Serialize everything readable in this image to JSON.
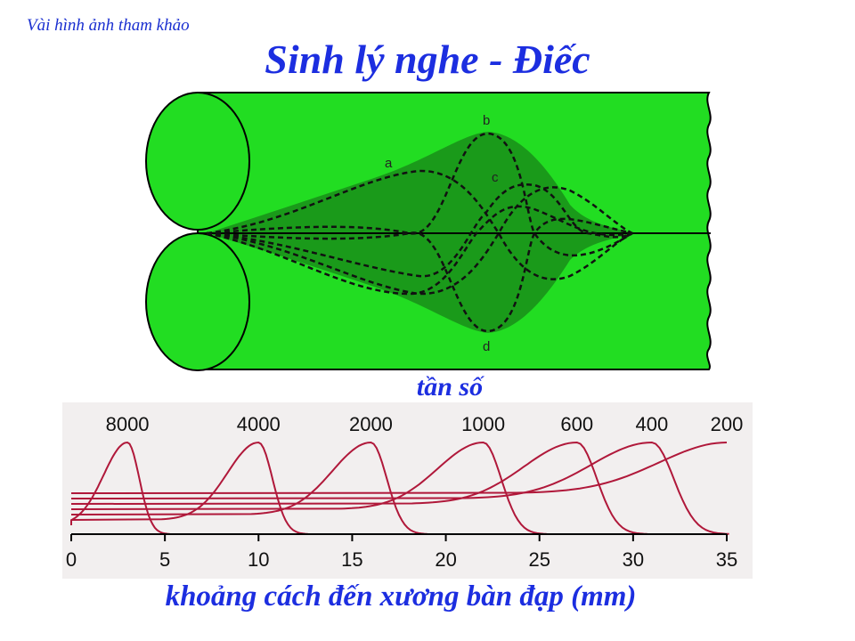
{
  "caption": "Vài hình ảnh tham khảo",
  "title": "Sinh lý nghe - Điếc",
  "wave_labels": [
    "a",
    "b",
    "c",
    "d"
  ],
  "colors": {
    "tube": "#22dd22",
    "envelope": "#1a9a1a",
    "curve": "#b0183a",
    "title": "#1c2ee0"
  },
  "frequency_title": "tần số",
  "x_axis_label": "khoảng cách đến xương bàn đạp (mm)",
  "chart_data": {
    "type": "line",
    "xlabel": "khoảng cách đến xương bàn đạp (mm)",
    "xlim": [
      0,
      35
    ],
    "x_ticks": [
      "0",
      "5",
      "10",
      "15",
      "20",
      "25",
      "30",
      "35"
    ],
    "series": [
      {
        "name": "8000",
        "peak_x": 3
      },
      {
        "name": "4000",
        "peak_x": 10
      },
      {
        "name": "2000",
        "peak_x": 16
      },
      {
        "name": "1000",
        "peak_x": 22
      },
      {
        "name": "600",
        "peak_x": 27
      },
      {
        "name": "400",
        "peak_x": 31
      },
      {
        "name": "200",
        "peak_x": 35
      }
    ]
  }
}
